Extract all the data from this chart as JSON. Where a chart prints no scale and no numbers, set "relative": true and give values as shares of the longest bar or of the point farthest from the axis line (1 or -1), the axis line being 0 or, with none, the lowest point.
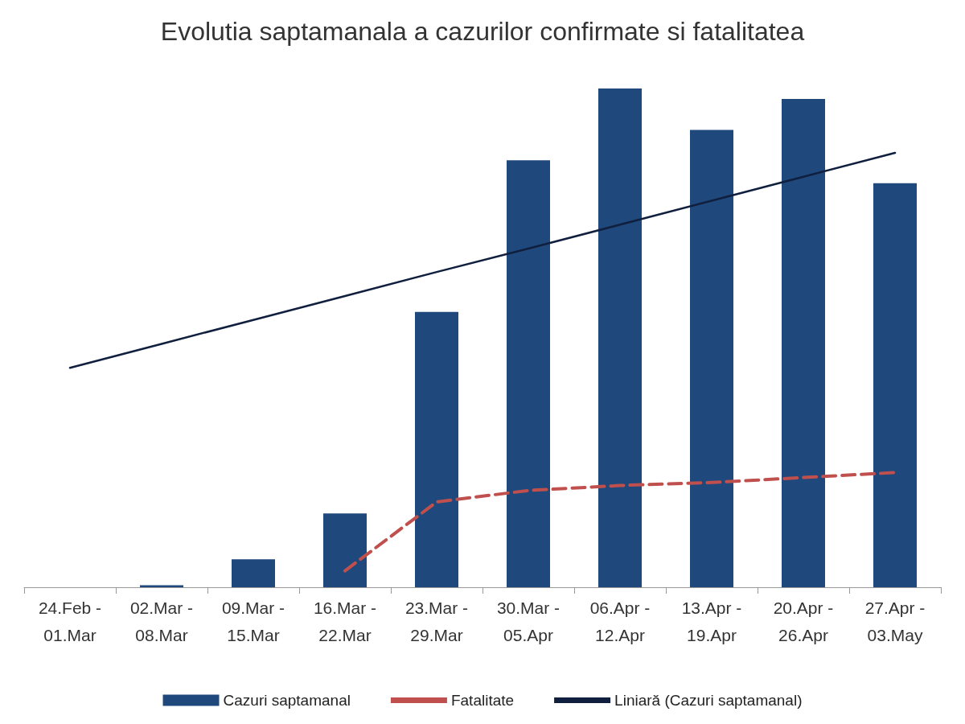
{
  "chart_data": {
    "type": "bar",
    "title": "Evolutia saptamanala a cazurilor confirmate si fatalitatea",
    "relative": true,
    "legend": "bottom",
    "categories": [
      "24.Feb - 01.Mar",
      "02.Mar - 08.Mar",
      "09.Mar - 15.Mar",
      "16.Mar - 22.Mar",
      "23.Mar - 29.Mar",
      "30.Mar - 05.Apr",
      "06.Apr - 12.Apr",
      "13.Apr - 19.Apr",
      "20.Apr - 26.Apr",
      "27.Apr - 03.May"
    ],
    "series": [
      {
        "name": "Cazuri saptamanal",
        "color": "#1f497d",
        "values": [
          0,
          0.004,
          0.056,
          0.148,
          0.552,
          0.856,
          1,
          0.917,
          0.979,
          0.81
        ]
      },
      {
        "name": "Fatalitate",
        "type": "line",
        "color": "#c0504d",
        "line_style": "dashed",
        "marker": "none",
        "values": [
          null,
          null,
          null,
          0.033,
          0.171,
          0.194,
          0.204,
          0.21,
          0.22,
          0.23
        ]
      },
      {
        "name": "Liniară (Cazuri saptamanal)",
        "type": "line",
        "color": "#0f1f3d",
        "line_style": "solid",
        "marker": "none",
        "values": [
          0.44,
          0.488,
          0.536,
          0.584,
          0.632,
          0.679,
          0.727,
          0.775,
          0.823,
          0.871
        ]
      }
    ]
  }
}
